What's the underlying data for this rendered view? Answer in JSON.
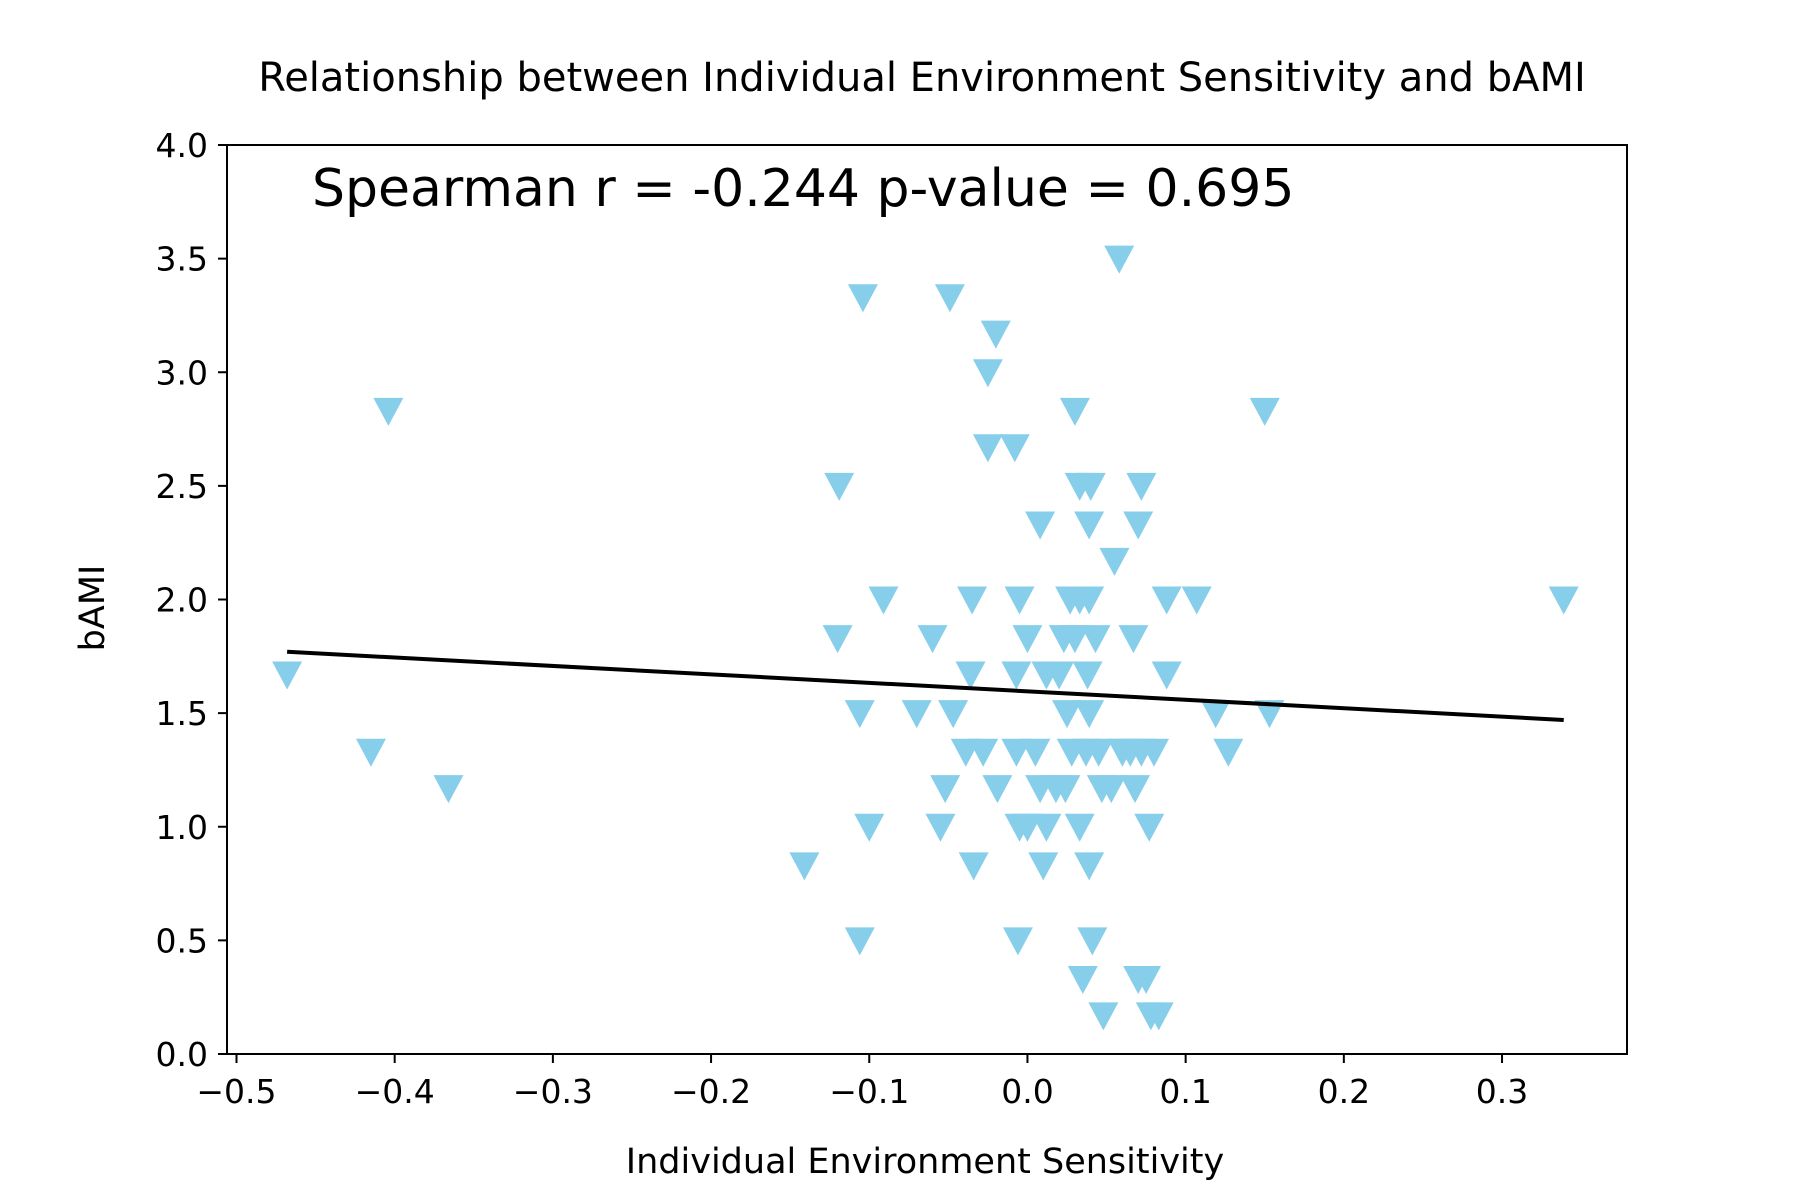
{
  "chart_data": {
    "type": "scatter",
    "title": "Relationship between Individual Environment Sensitivity and bAMI",
    "xlabel": "Individual Environment Sensitivity",
    "ylabel": "bAMI",
    "xlim": [
      -0.506,
      0.379
    ],
    "ylim": [
      0.0,
      4.0
    ],
    "x_ticks": [
      -0.5,
      -0.4,
      -0.3,
      -0.2,
      -0.1,
      0.0,
      0.1,
      0.2,
      0.3
    ],
    "x_tick_labels": [
      "−0.5",
      "−0.4",
      "−0.3",
      "−0.2",
      "−0.1",
      "0.0",
      "0.1",
      "0.2",
      "0.3"
    ],
    "y_ticks": [
      0.0,
      0.5,
      1.0,
      1.5,
      2.0,
      2.5,
      3.0,
      3.5,
      4.0
    ],
    "y_tick_labels": [
      "0.0",
      "0.5",
      "1.0",
      "1.5",
      "2.0",
      "2.5",
      "3.0",
      "3.5",
      "4.0"
    ],
    "annotation": "Spearman r = -0.244 p-value = 0.695",
    "grid": false,
    "marker": "triangle-down",
    "colors": {
      "points": "#87ceeb",
      "trend_line": "#000000",
      "axes": "#000000"
    },
    "points": [
      {
        "x": -0.468,
        "y": 1.67
      },
      {
        "x": -0.415,
        "y": 1.33
      },
      {
        "x": -0.404,
        "y": 2.83
      },
      {
        "x": -0.366,
        "y": 1.17
      },
      {
        "x": -0.141,
        "y": 0.83
      },
      {
        "x": -0.12,
        "y": 1.83
      },
      {
        "x": -0.119,
        "y": 2.5
      },
      {
        "x": -0.106,
        "y": 1.5
      },
      {
        "x": -0.106,
        "y": 0.5
      },
      {
        "x": -0.104,
        "y": 3.33
      },
      {
        "x": -0.1,
        "y": 1.0
      },
      {
        "x": -0.091,
        "y": 2.0
      },
      {
        "x": -0.07,
        "y": 1.5
      },
      {
        "x": -0.06,
        "y": 1.83
      },
      {
        "x": -0.055,
        "y": 1.0
      },
      {
        "x": -0.052,
        "y": 1.17
      },
      {
        "x": -0.049,
        "y": 3.33
      },
      {
        "x": -0.047,
        "y": 1.5
      },
      {
        "x": -0.039,
        "y": 1.33
      },
      {
        "x": -0.036,
        "y": 1.67
      },
      {
        "x": -0.035,
        "y": 2.0
      },
      {
        "x": -0.034,
        "y": 0.83
      },
      {
        "x": -0.028,
        "y": 1.33
      },
      {
        "x": -0.025,
        "y": 3.0
      },
      {
        "x": -0.025,
        "y": 2.67
      },
      {
        "x": -0.02,
        "y": 3.17
      },
      {
        "x": -0.019,
        "y": 1.17
      },
      {
        "x": -0.008,
        "y": 2.67
      },
      {
        "x": -0.007,
        "y": 1.67
      },
      {
        "x": -0.007,
        "y": 1.33
      },
      {
        "x": -0.005,
        "y": 1.0
      },
      {
        "x": -0.006,
        "y": 0.5
      },
      {
        "x": -0.005,
        "y": 2.0
      },
      {
        "x": 0.0,
        "y": 1.83
      },
      {
        "x": 0.0,
        "y": 1.0
      },
      {
        "x": 0.005,
        "y": 1.33
      },
      {
        "x": 0.008,
        "y": 2.33
      },
      {
        "x": 0.008,
        "y": 1.17
      },
      {
        "x": 0.01,
        "y": 0.83
      },
      {
        "x": 0.012,
        "y": 1.67
      },
      {
        "x": 0.012,
        "y": 1.0
      },
      {
        "x": 0.018,
        "y": 1.17
      },
      {
        "x": 0.02,
        "y": 1.67
      },
      {
        "x": 0.023,
        "y": 1.83
      },
      {
        "x": 0.024,
        "y": 1.17
      },
      {
        "x": 0.025,
        "y": 1.5
      },
      {
        "x": 0.027,
        "y": 2.0
      },
      {
        "x": 0.028,
        "y": 1.33
      },
      {
        "x": 0.03,
        "y": 1.83
      },
      {
        "x": 0.03,
        "y": 2.83
      },
      {
        "x": 0.033,
        "y": 2.5
      },
      {
        "x": 0.033,
        "y": 2.0
      },
      {
        "x": 0.033,
        "y": 1.0
      },
      {
        "x": 0.035,
        "y": 0.33
      },
      {
        "x": 0.037,
        "y": 1.33
      },
      {
        "x": 0.038,
        "y": 1.67
      },
      {
        "x": 0.039,
        "y": 2.33
      },
      {
        "x": 0.039,
        "y": 1.5
      },
      {
        "x": 0.039,
        "y": 0.83
      },
      {
        "x": 0.039,
        "y": 2.0
      },
      {
        "x": 0.04,
        "y": 2.5
      },
      {
        "x": 0.041,
        "y": 0.5
      },
      {
        "x": 0.043,
        "y": 1.83
      },
      {
        "x": 0.045,
        "y": 1.33
      },
      {
        "x": 0.047,
        "y": 1.17
      },
      {
        "x": 0.048,
        "y": 0.17
      },
      {
        "x": 0.053,
        "y": 1.17
      },
      {
        "x": 0.055,
        "y": 2.17
      },
      {
        "x": 0.058,
        "y": 3.5
      },
      {
        "x": 0.06,
        "y": 1.33
      },
      {
        "x": 0.065,
        "y": 1.33
      },
      {
        "x": 0.067,
        "y": 1.83
      },
      {
        "x": 0.068,
        "y": 1.17
      },
      {
        "x": 0.07,
        "y": 0.33
      },
      {
        "x": 0.07,
        "y": 2.33
      },
      {
        "x": 0.072,
        "y": 1.33
      },
      {
        "x": 0.072,
        "y": 2.5
      },
      {
        "x": 0.075,
        "y": 0.33
      },
      {
        "x": 0.077,
        "y": 1.0
      },
      {
        "x": 0.078,
        "y": 0.17
      },
      {
        "x": 0.08,
        "y": 1.33
      },
      {
        "x": 0.083,
        "y": 0.17
      },
      {
        "x": 0.088,
        "y": 2.0
      },
      {
        "x": 0.088,
        "y": 1.67
      },
      {
        "x": 0.107,
        "y": 2.0
      },
      {
        "x": 0.119,
        "y": 1.5
      },
      {
        "x": 0.127,
        "y": 1.33
      },
      {
        "x": 0.15,
        "y": 2.83
      },
      {
        "x": 0.153,
        "y": 1.5
      },
      {
        "x": 0.339,
        "y": 2.0
      }
    ],
    "trend_line": {
      "x": [
        -0.468,
        0.339
      ],
      "y": [
        1.77,
        1.47
      ]
    }
  }
}
